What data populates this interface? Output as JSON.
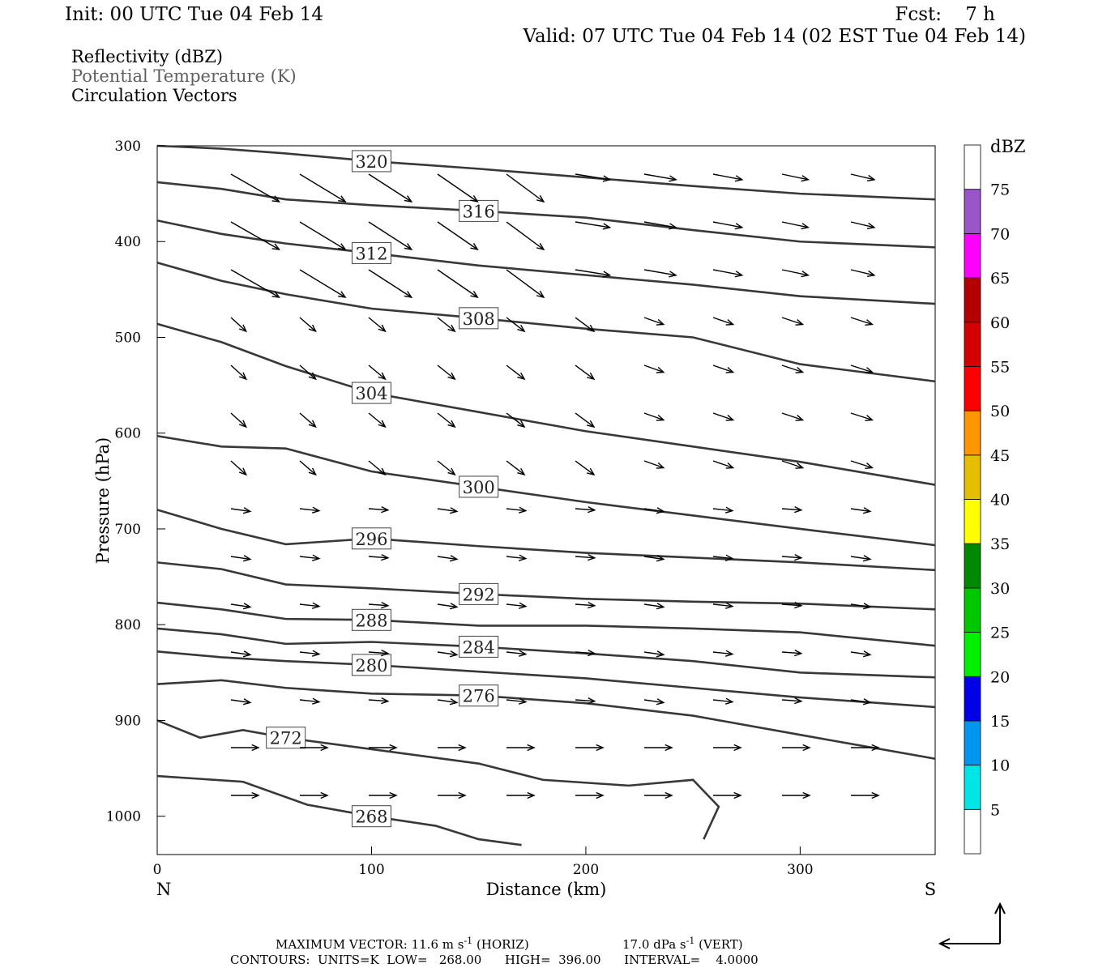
{
  "header": {
    "init": "Init: 00 UTC Tue 04 Feb 14",
    "fcst": "Fcst:    7 h",
    "valid": "Valid: 07 UTC Tue 04 Feb 14 (02 EST Tue 04 Feb 14)",
    "fields": [
      "Reflectivity (dBZ)",
      "Potential Temperature (K)",
      "Circulation Vectors"
    ]
  },
  "footer": {
    "line1_a": "MAXIMUM VECTOR:  11.6 m s",
    "line1_b": " (HORIZ)",
    "line1_c": "17.0 dPa s",
    "line1_d": " (VERT)",
    "exp": "-1",
    "line2": "CONTOURS:  UNITS=K  LOW=   268.00      HIGH=  396.00      INTERVAL=    4.0000"
  },
  "colorbar": {
    "title": "dBZ",
    "labels": [
      "5",
      "10",
      "15",
      "20",
      "25",
      "30",
      "35",
      "40",
      "45",
      "50",
      "55",
      "60",
      "65",
      "70",
      "75"
    ],
    "colors": [
      "#ffffff",
      "#00e6e6",
      "#0096f0",
      "#0000e6",
      "#00f000",
      "#00c800",
      "#008800",
      "#ffff00",
      "#e6be00",
      "#ff9600",
      "#ff0000",
      "#d70000",
      "#b40000",
      "#ff00ff",
      "#9a55c8",
      "#ffffff"
    ]
  },
  "chart_data": {
    "type": "cross-section",
    "title": "",
    "xlabel": "Distance (km)",
    "ylabel": "Pressure (hPa)",
    "xlim": [
      0,
      363
    ],
    "ylim": [
      300,
      1040
    ],
    "x_ticks": [
      "0",
      "100",
      "200",
      "300"
    ],
    "y_ticks": [
      "300",
      "400",
      "500",
      "600",
      "700",
      "800",
      "900",
      "1000"
    ],
    "endpoints": {
      "left": "N",
      "right": "S"
    },
    "isentropes": [
      {
        "theta": 320,
        "points": [
          [
            0,
            300
          ],
          [
            30,
            303
          ],
          [
            60,
            308
          ],
          [
            100,
            316
          ],
          [
            150,
            324
          ],
          [
            200,
            333
          ],
          [
            250,
            342
          ],
          [
            300,
            350
          ],
          [
            363,
            356
          ]
        ]
      },
      {
        "theta": 316,
        "points": [
          [
            0,
            338
          ],
          [
            30,
            345
          ],
          [
            60,
            356
          ],
          [
            100,
            362
          ],
          [
            150,
            368
          ],
          [
            200,
            375
          ],
          [
            250,
            388
          ],
          [
            300,
            400
          ],
          [
            363,
            406
          ]
        ]
      },
      {
        "theta": 312,
        "points": [
          [
            0,
            378
          ],
          [
            30,
            392
          ],
          [
            60,
            402
          ],
          [
            100,
            412
          ],
          [
            150,
            425
          ],
          [
            200,
            435
          ],
          [
            250,
            445
          ],
          [
            300,
            457
          ],
          [
            363,
            465
          ]
        ]
      },
      {
        "theta": 308,
        "points": [
          [
            0,
            422
          ],
          [
            30,
            441
          ],
          [
            60,
            455
          ],
          [
            100,
            470
          ],
          [
            150,
            480
          ],
          [
            200,
            491
          ],
          [
            250,
            500
          ],
          [
            300,
            528
          ],
          [
            363,
            546
          ]
        ]
      },
      {
        "theta": 304,
        "points": [
          [
            0,
            486
          ],
          [
            30,
            505
          ],
          [
            60,
            530
          ],
          [
            100,
            558
          ],
          [
            150,
            578
          ],
          [
            200,
            598
          ],
          [
            250,
            614
          ],
          [
            300,
            630
          ],
          [
            363,
            654
          ]
        ]
      },
      {
        "theta": 300,
        "points": [
          [
            0,
            603
          ],
          [
            30,
            614
          ],
          [
            60,
            616
          ],
          [
            100,
            640
          ],
          [
            150,
            656
          ],
          [
            200,
            672
          ],
          [
            250,
            686
          ],
          [
            300,
            700
          ],
          [
            363,
            717
          ]
        ]
      },
      {
        "theta": 296,
        "points": [
          [
            0,
            680
          ],
          [
            30,
            700
          ],
          [
            60,
            716
          ],
          [
            100,
            710
          ],
          [
            150,
            718
          ],
          [
            200,
            725
          ],
          [
            250,
            730
          ],
          [
            300,
            735
          ],
          [
            363,
            743
          ]
        ]
      },
      {
        "theta": 292,
        "points": [
          [
            0,
            735
          ],
          [
            30,
            742
          ],
          [
            60,
            758
          ],
          [
            100,
            762
          ],
          [
            150,
            768
          ],
          [
            200,
            773
          ],
          [
            250,
            776
          ],
          [
            300,
            778
          ],
          [
            363,
            784
          ]
        ]
      },
      {
        "theta": 288,
        "points": [
          [
            0,
            777
          ],
          [
            30,
            784
          ],
          [
            60,
            794
          ],
          [
            100,
            795
          ],
          [
            150,
            801
          ],
          [
            200,
            801
          ],
          [
            250,
            804
          ],
          [
            300,
            808
          ],
          [
            363,
            822
          ]
        ]
      },
      {
        "theta": 284,
        "points": [
          [
            0,
            804
          ],
          [
            30,
            810
          ],
          [
            60,
            820
          ],
          [
            100,
            818
          ],
          [
            150,
            823
          ],
          [
            200,
            830
          ],
          [
            250,
            838
          ],
          [
            300,
            850
          ],
          [
            363,
            855
          ]
        ]
      },
      {
        "theta": 280,
        "points": [
          [
            0,
            828
          ],
          [
            30,
            834
          ],
          [
            60,
            838
          ],
          [
            100,
            842
          ],
          [
            150,
            849
          ],
          [
            200,
            856
          ],
          [
            250,
            866
          ],
          [
            300,
            876
          ],
          [
            363,
            886
          ]
        ]
      },
      {
        "theta": 276,
        "points": [
          [
            0,
            862
          ],
          [
            30,
            858
          ],
          [
            60,
            866
          ],
          [
            100,
            872
          ],
          [
            150,
            874
          ],
          [
            200,
            882
          ],
          [
            250,
            895
          ],
          [
            300,
            915
          ],
          [
            363,
            940
          ]
        ]
      },
      {
        "theta": 272,
        "points": [
          [
            0,
            900
          ],
          [
            20,
            918
          ],
          [
            40,
            910
          ],
          [
            60,
            918
          ],
          [
            100,
            930
          ],
          [
            150,
            945
          ],
          [
            180,
            962
          ],
          [
            220,
            968
          ],
          [
            250,
            962
          ],
          [
            262,
            990
          ],
          [
            255,
            1024
          ]
        ]
      },
      {
        "theta": 268,
        "points": [
          [
            0,
            958
          ],
          [
            40,
            964
          ],
          [
            70,
            988
          ],
          [
            100,
            1000
          ],
          [
            130,
            1010
          ],
          [
            150,
            1024
          ],
          [
            170,
            1030
          ]
        ]
      }
    ],
    "max_vector": {
      "horizontal": "11.6 m/s",
      "vertical": "17.0 dPa/s"
    },
    "contour_units": "K",
    "contour_low": 268.0,
    "contour_high": 396.0,
    "contour_interval": 4.0,
    "reflectivity": "none shown"
  }
}
